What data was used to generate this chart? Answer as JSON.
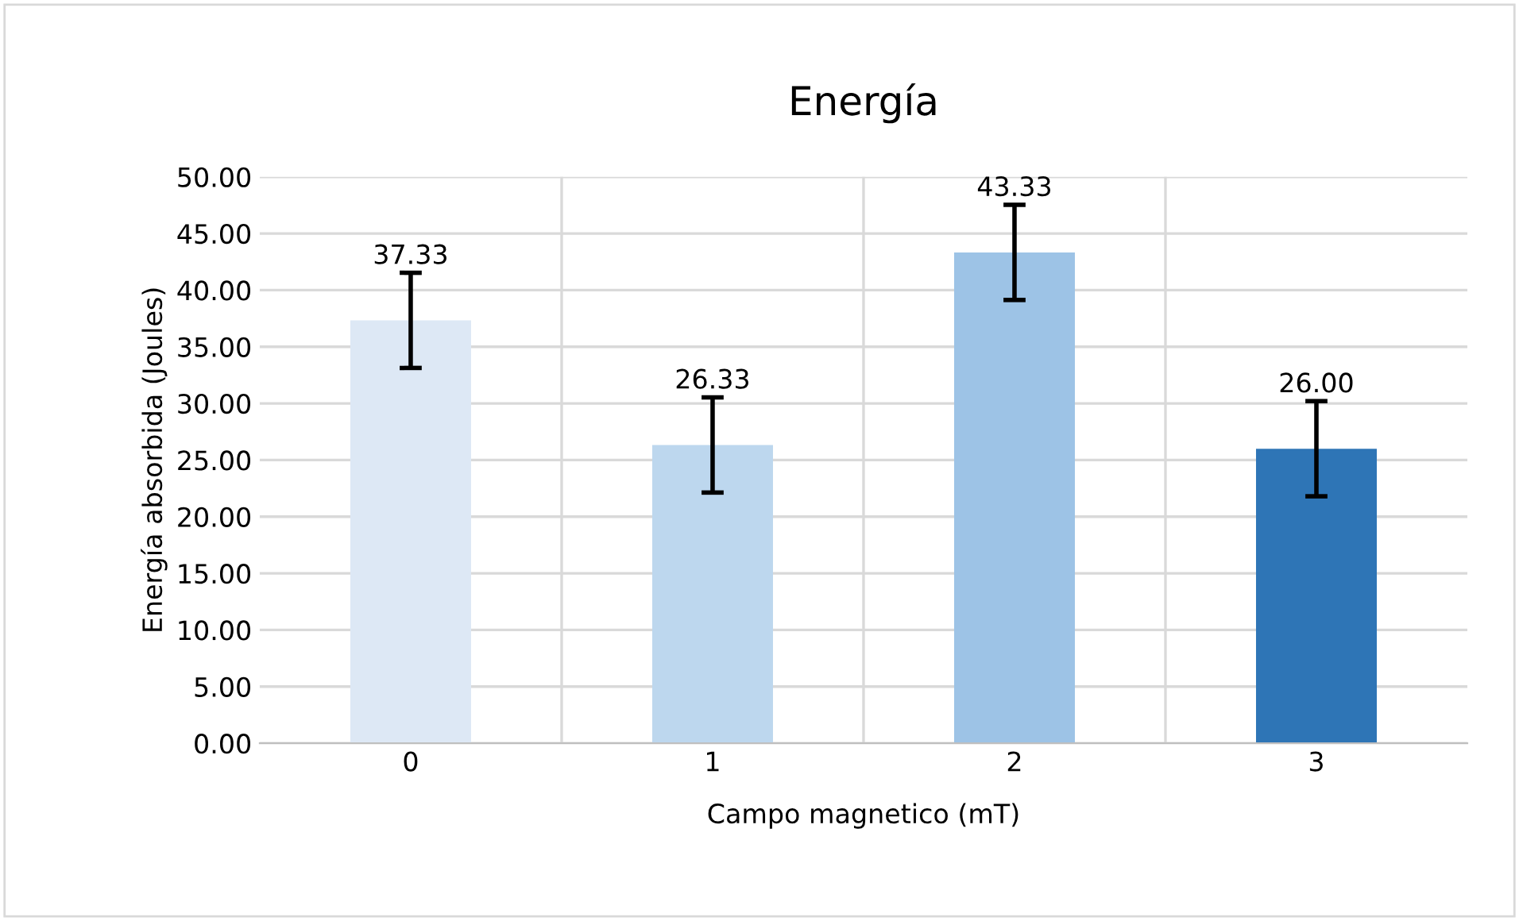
{
  "chart_data": {
    "type": "bar",
    "title": "Energía",
    "xlabel": "Campo magnetico (mT)",
    "ylabel": "Energía absorbida (Joules)",
    "categories": [
      "0",
      "1",
      "2",
      "3"
    ],
    "values": [
      37.33,
      26.33,
      43.33,
      26.0
    ],
    "colors": [
      "#dde8f5",
      "#bdd7ee",
      "#9dc3e6",
      "#2e75b6"
    ],
    "errors": [
      4.2,
      4.2,
      4.2,
      4.2
    ],
    "ylim": [
      0,
      50
    ],
    "yticks": [
      {
        "value": 0,
        "label": "0.00"
      },
      {
        "value": 5,
        "label": "5.00"
      },
      {
        "value": 10,
        "label": "10.00"
      },
      {
        "value": 15,
        "label": "15.00"
      },
      {
        "value": 20,
        "label": "20.00"
      },
      {
        "value": 25,
        "label": "25.00"
      },
      {
        "value": 30,
        "label": "30.00"
      },
      {
        "value": 35,
        "label": "35.00"
      },
      {
        "value": 40,
        "label": "40.00"
      },
      {
        "value": 45,
        "label": "45.00"
      },
      {
        "value": 50,
        "label": "50.00"
      }
    ],
    "value_labels": [
      "37.33",
      "26.33",
      "43.33",
      "26.00"
    ],
    "grid": true
  }
}
